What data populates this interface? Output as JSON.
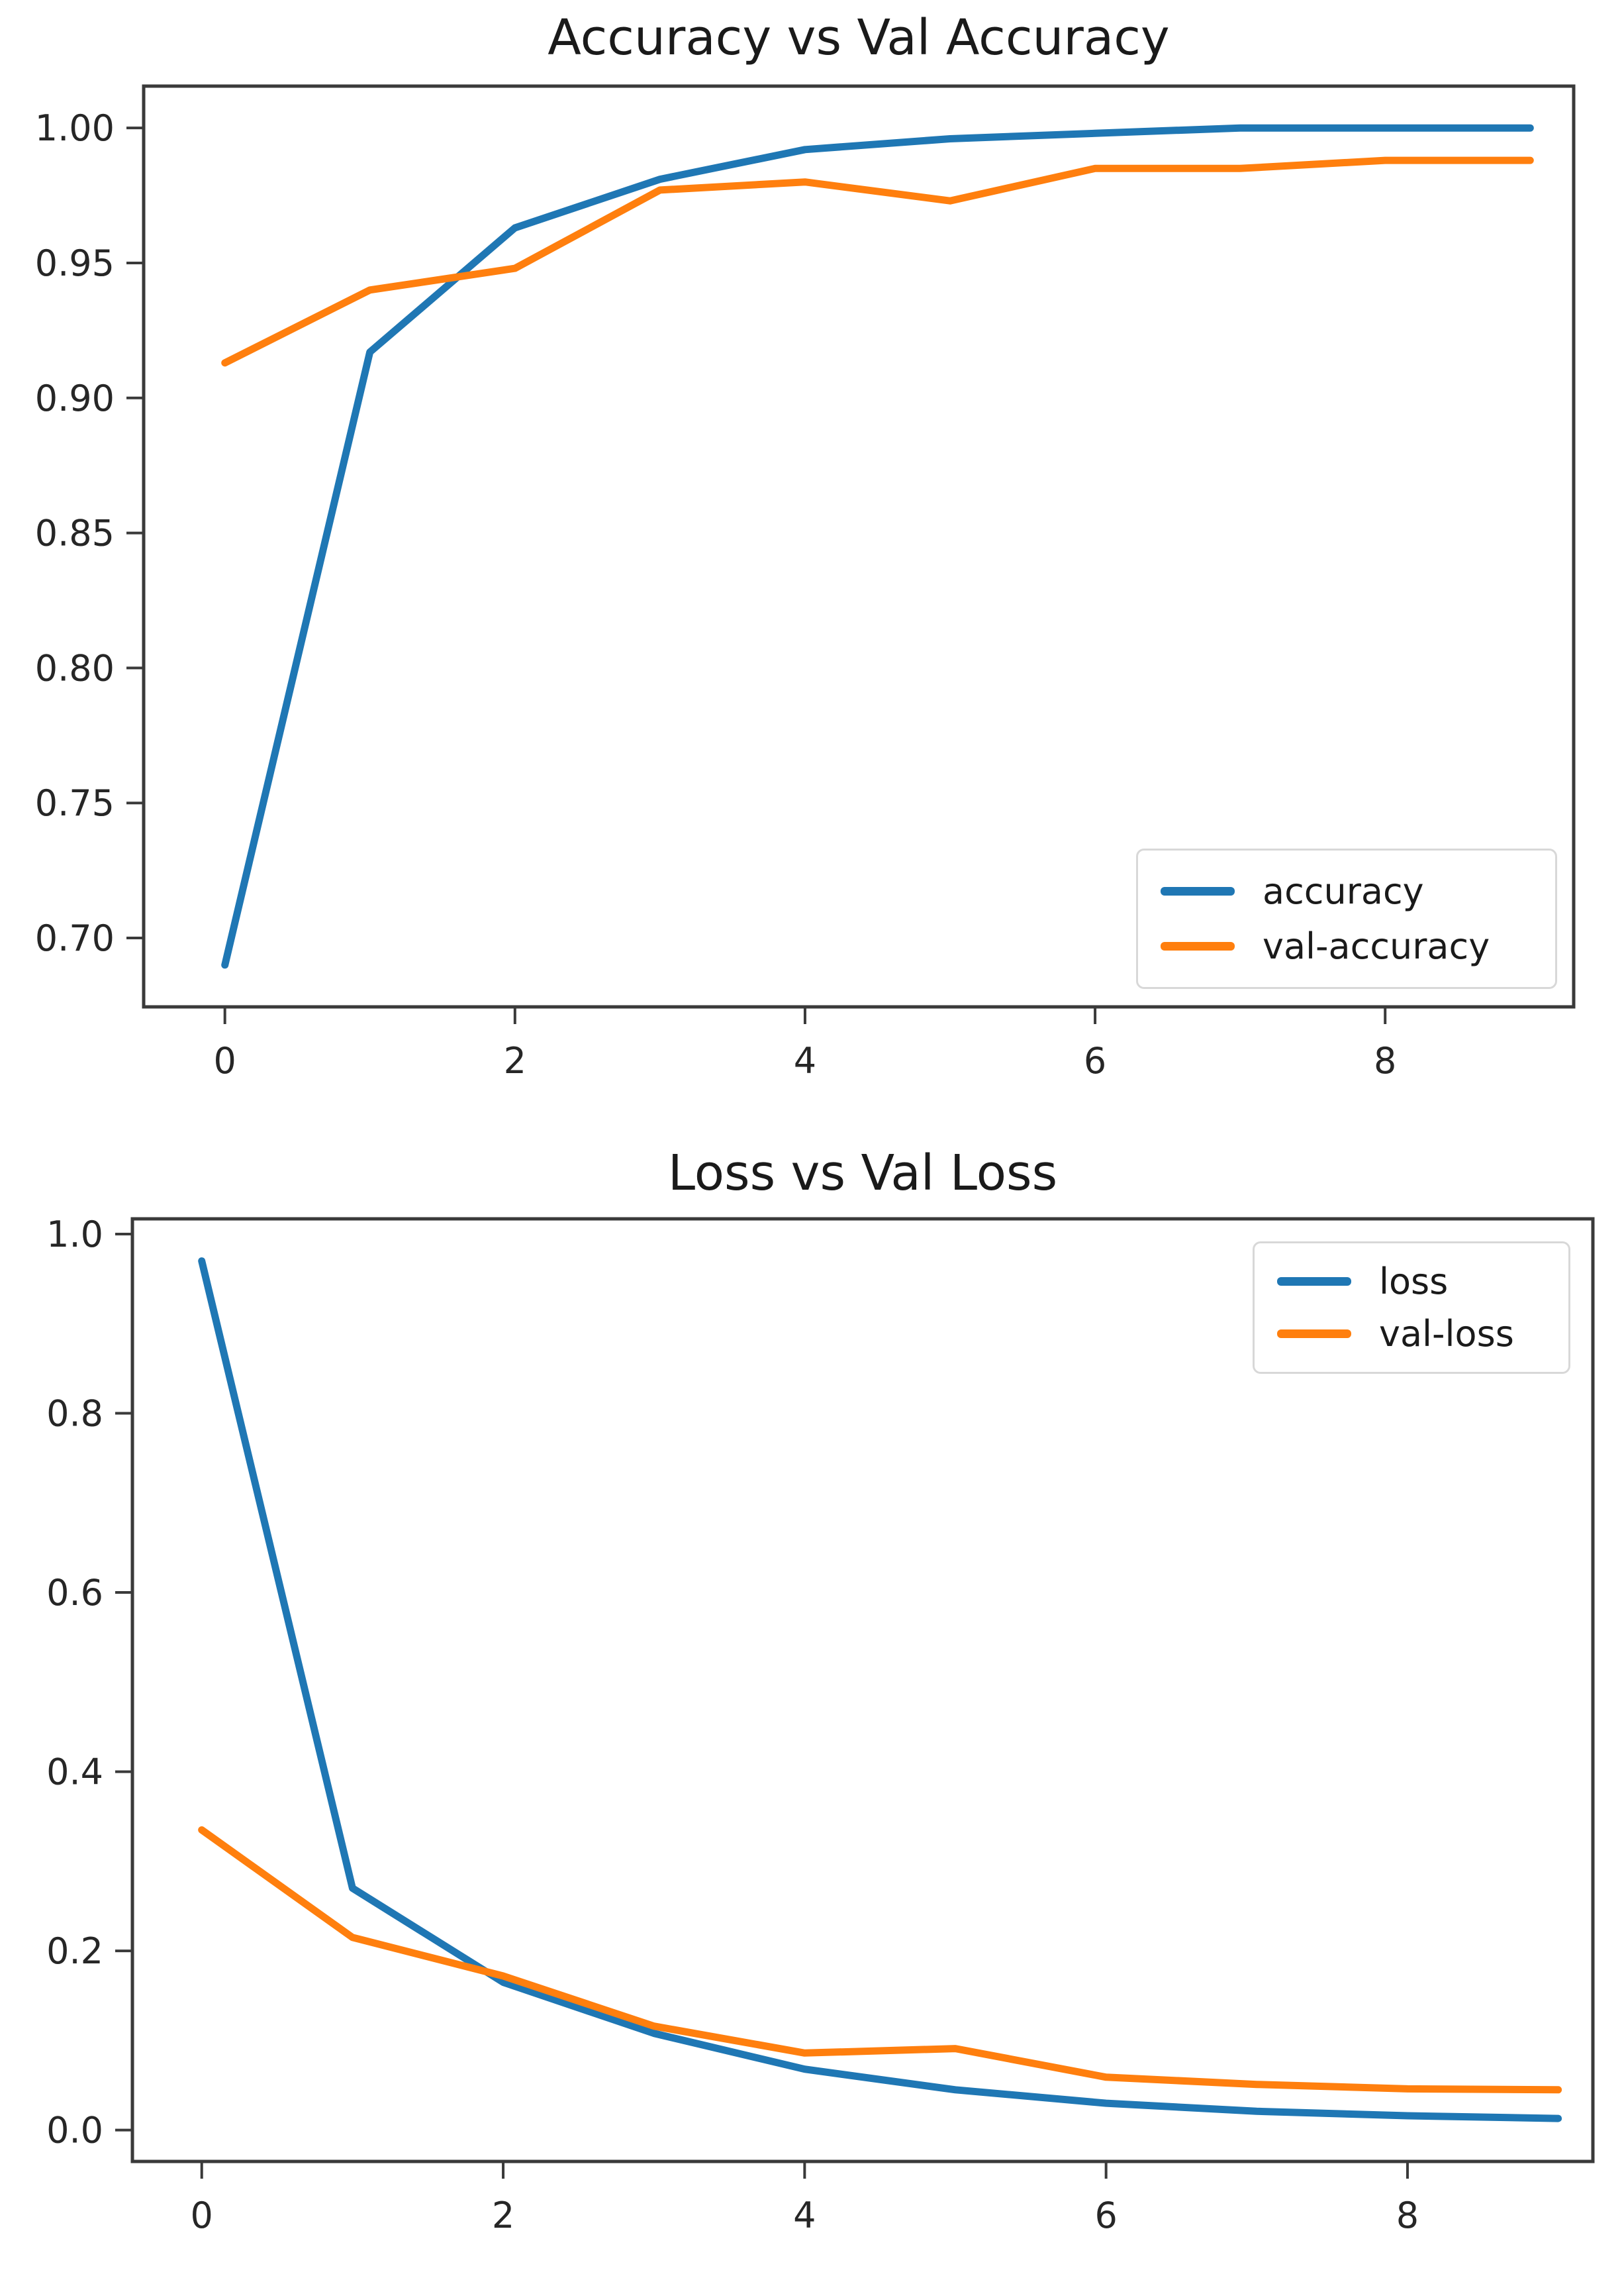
{
  "figure": {
    "background": "#ffffff"
  },
  "style": {
    "axis_color": "#3a3a3a",
    "tick_label_color": "#262626",
    "title_color": "#1a1a1a",
    "legend_border_color": "#d8d8d8",
    "series_blue": "#1f77b4",
    "series_orange": "#ff7f0e"
  },
  "chart_data": [
    {
      "type": "line",
      "title": "Accuracy vs Val Accuracy",
      "xlabel": "",
      "ylabel": "",
      "x": [
        0,
        1,
        2,
        3,
        4,
        5,
        6,
        7,
        8,
        9
      ],
      "series": [
        {
          "name": "accuracy",
          "color": "#1f77b4",
          "values": [
            0.69,
            0.917,
            0.963,
            0.981,
            0.992,
            0.996,
            0.998,
            1.0,
            1.0,
            1.0
          ]
        },
        {
          "name": "val-accuracy",
          "color": "#ff7f0e",
          "values": [
            0.913,
            0.94,
            0.948,
            0.977,
            0.98,
            0.973,
            0.985,
            0.985,
            0.988,
            0.988
          ]
        }
      ],
      "xticks": [
        0,
        2,
        4,
        6,
        8
      ],
      "xtick_labels": [
        "0",
        "2",
        "4",
        "6",
        "8"
      ],
      "yticks": [
        1.0,
        0.95,
        0.9,
        0.85,
        0.8,
        0.75,
        0.7
      ],
      "ytick_labels": [
        "1.00",
        "0.95",
        "0.90",
        "0.85",
        "0.80",
        "0.75",
        "0.70"
      ],
      "xlim": [
        -0.56,
        9.3
      ],
      "ylim": [
        0.6745,
        1.0155
      ],
      "grid": false,
      "legend_position": "lower right"
    },
    {
      "type": "line",
      "title": "Loss vs Val Loss",
      "xlabel": "",
      "ylabel": "",
      "x": [
        0,
        1,
        2,
        3,
        4,
        5,
        6,
        7,
        8,
        9
      ],
      "series": [
        {
          "name": "loss",
          "color": "#1f77b4",
          "values": [
            0.97,
            0.27,
            0.165,
            0.108,
            0.068,
            0.045,
            0.03,
            0.021,
            0.016,
            0.013
          ]
        },
        {
          "name": "val-loss",
          "color": "#ff7f0e",
          "values": [
            0.335,
            0.215,
            0.172,
            0.116,
            0.086,
            0.091,
            0.059,
            0.051,
            0.046,
            0.045
          ]
        }
      ],
      "xticks": [
        0,
        2,
        4,
        6,
        8
      ],
      "xtick_labels": [
        "0",
        "2",
        "4",
        "6",
        "8"
      ],
      "yticks": [
        1.0,
        0.8,
        0.6,
        0.4,
        0.2,
        0.0
      ],
      "ytick_labels": [
        "1.0",
        "0.8",
        "0.6",
        "0.4",
        "0.2",
        "0.0"
      ],
      "xlim": [
        -0.46,
        9.23
      ],
      "ylim": [
        -0.035,
        1.017
      ],
      "grid": false,
      "legend_position": "upper right"
    }
  ]
}
